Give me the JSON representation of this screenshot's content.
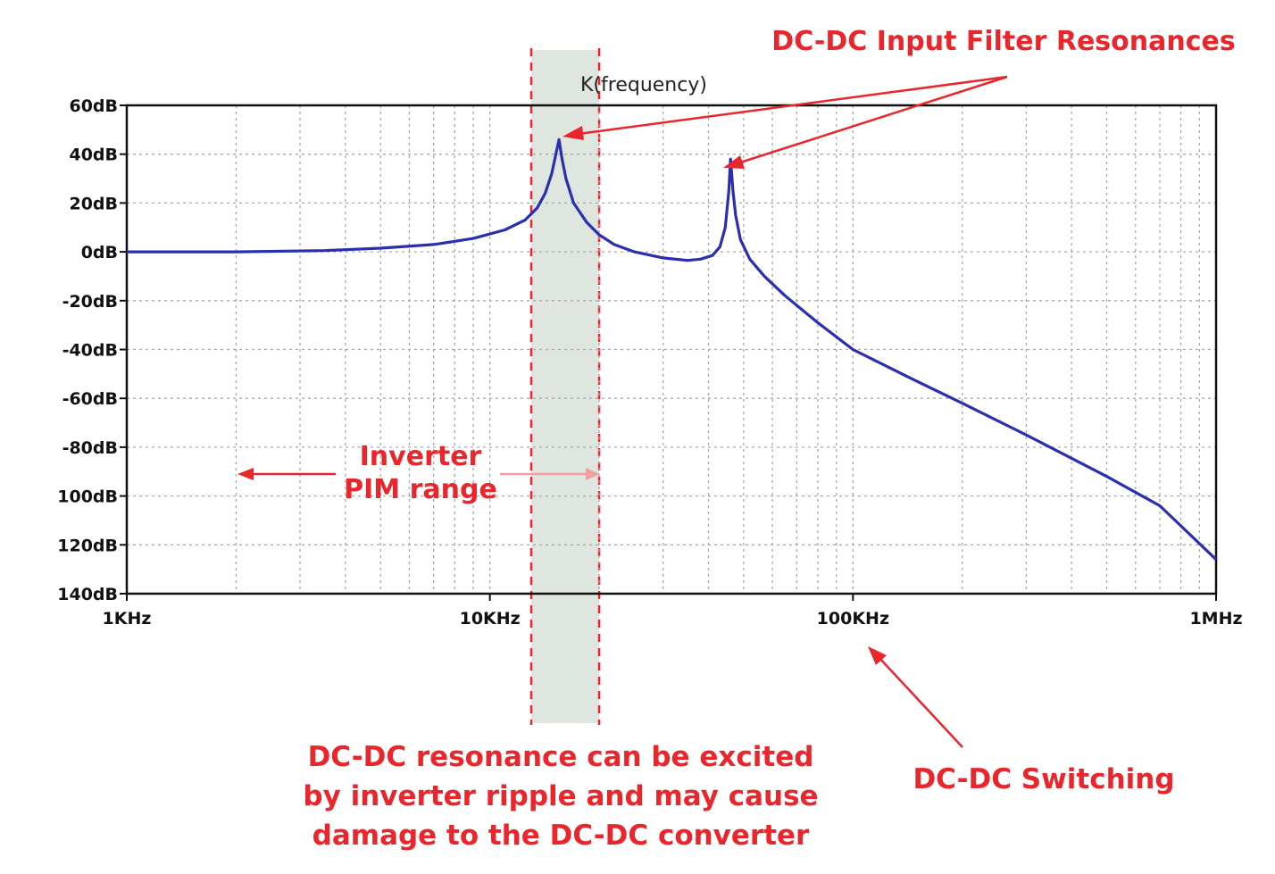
{
  "chart_data": {
    "type": "line",
    "title": "",
    "xlabel": "",
    "ylabel": "",
    "x_scale": "log",
    "xlim": [
      1000,
      1000000
    ],
    "ylim": [
      -140,
      60
    ],
    "grid": true,
    "y_ticks": [
      {
        "value": 60,
        "label": "60dB"
      },
      {
        "value": 40,
        "label": "40dB"
      },
      {
        "value": 20,
        "label": "20dB"
      },
      {
        "value": 0,
        "label": "0dB"
      },
      {
        "value": -20,
        "label": "-20dB"
      },
      {
        "value": -40,
        "label": "-40dB"
      },
      {
        "value": -60,
        "label": "-60dB"
      },
      {
        "value": -80,
        "label": "-80dB"
      },
      {
        "value": -100,
        "label": "100dB"
      },
      {
        "value": -120,
        "label": "120dB"
      },
      {
        "value": -140,
        "label": "140dB"
      }
    ],
    "x_ticks": [
      {
        "value": 1000,
        "label": "1KHz"
      },
      {
        "value": 10000,
        "label": "10KHz"
      },
      {
        "value": 100000,
        "label": "100KHz"
      },
      {
        "value": 1000000,
        "label": "1MHz"
      }
    ],
    "series": [
      {
        "name": "K(frequency)",
        "color": "#2a2fb0",
        "x": [
          1000,
          2000,
          3500,
          5000,
          7000,
          9000,
          11000,
          12500,
          13500,
          14200,
          14800,
          15200,
          15500,
          15800,
          16200,
          17000,
          18500,
          20000,
          22000,
          25000,
          30000,
          35000,
          38000,
          41000,
          43000,
          44500,
          45500,
          46000,
          46700,
          47500,
          49000,
          52000,
          57000,
          65000,
          80000,
          100000,
          150000,
          200000,
          300000,
          500000,
          700000,
          1000000
        ],
        "y": [
          0,
          0,
          0.5,
          1.5,
          3,
          5.5,
          9,
          13,
          18,
          24,
          32,
          40,
          46,
          38,
          30,
          20,
          12,
          7,
          3,
          0,
          -2.5,
          -3.5,
          -3,
          -1.5,
          2,
          10,
          25,
          38,
          25,
          15,
          5,
          -3,
          -10,
          -18,
          -29,
          -40,
          -53,
          -62,
          -75,
          -92,
          -104,
          -126
        ]
      }
    ],
    "shaded_band": {
      "x_from": 13000,
      "x_to": 20000,
      "color": "#dfe5df"
    },
    "annotations": [
      {
        "text": "DC-DC Input Filter Resonances",
        "color": "#e8262b"
      },
      {
        "text": "Inverter",
        "color": "#e8262b"
      },
      {
        "text": "PIM range",
        "color": "#e8262b"
      },
      {
        "text": "DC-DC resonance can be excited",
        "color": "#e8262b"
      },
      {
        "text": "by inverter ripple and may cause",
        "color": "#e8262b"
      },
      {
        "text": "damage to the DC-DC converter",
        "color": "#e8262b"
      },
      {
        "text": "DC-DC Switching",
        "color": "#e8262b"
      }
    ]
  }
}
